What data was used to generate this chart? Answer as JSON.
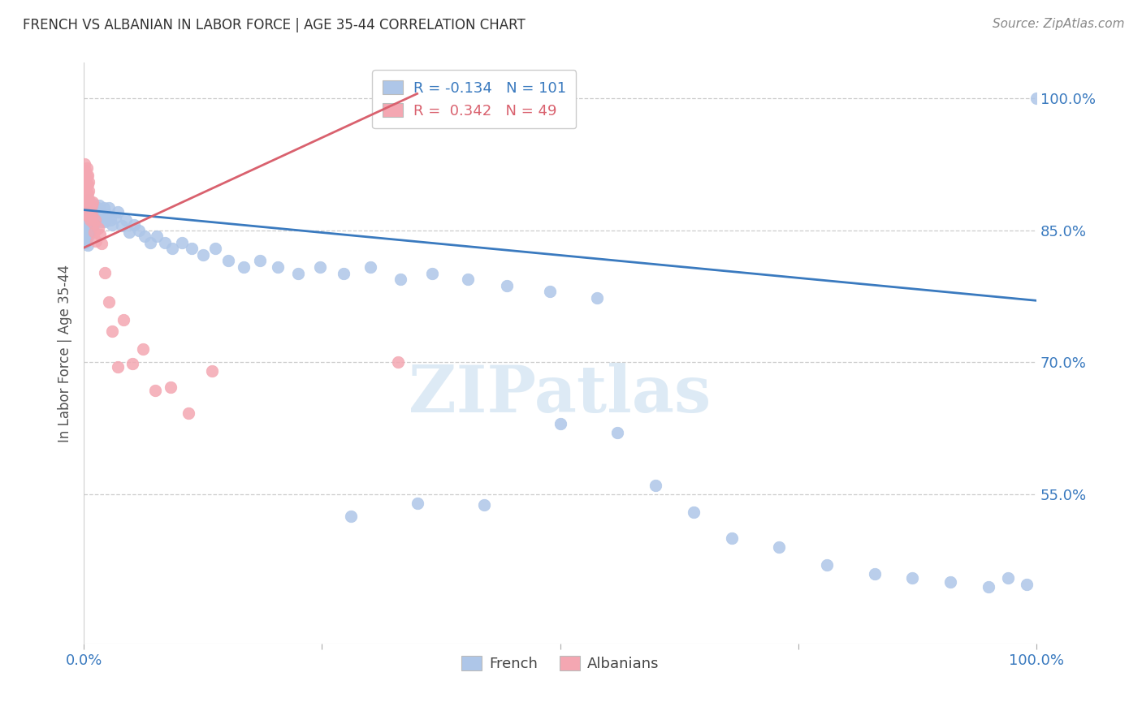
{
  "title": "FRENCH VS ALBANIAN IN LABOR FORCE | AGE 35-44 CORRELATION CHART",
  "source": "Source: ZipAtlas.com",
  "ylabel": "In Labor Force | Age 35-44",
  "xlim": [
    0.0,
    1.0
  ],
  "ylim": [
    0.38,
    1.04
  ],
  "y_ticks_right": [
    1.0,
    0.85,
    0.7,
    0.55
  ],
  "y_tick_labels_right": [
    "100.0%",
    "85.0%",
    "70.0%",
    "55.0%"
  ],
  "grid_color": "#cccccc",
  "background_color": "#ffffff",
  "french_color": "#aec6e8",
  "albanian_color": "#f4a7b2",
  "french_line_color": "#3a7abf",
  "albanian_line_color": "#d9616e",
  "french_R": -0.134,
  "french_N": 101,
  "albanian_R": 0.342,
  "albanian_N": 49,
  "watermark": "ZIPatlas",
  "legend_french_label": "French",
  "legend_albanian_label": "Albanians",
  "french_x": [
    0.001,
    0.001,
    0.001,
    0.002,
    0.002,
    0.002,
    0.002,
    0.002,
    0.003,
    0.003,
    0.003,
    0.003,
    0.003,
    0.004,
    0.004,
    0.004,
    0.004,
    0.004,
    0.005,
    0.005,
    0.005,
    0.005,
    0.006,
    0.006,
    0.006,
    0.007,
    0.007,
    0.007,
    0.008,
    0.008,
    0.009,
    0.009,
    0.009,
    0.01,
    0.01,
    0.011,
    0.011,
    0.012,
    0.012,
    0.013,
    0.014,
    0.014,
    0.015,
    0.016,
    0.017,
    0.018,
    0.019,
    0.02,
    0.021,
    0.022,
    0.024,
    0.026,
    0.028,
    0.03,
    0.033,
    0.036,
    0.04,
    0.044,
    0.048,
    0.053,
    0.058,
    0.064,
    0.07,
    0.077,
    0.085,
    0.093,
    0.103,
    0.113,
    0.125,
    0.138,
    0.152,
    0.168,
    0.185,
    0.204,
    0.225,
    0.248,
    0.273,
    0.301,
    0.332,
    0.366,
    0.403,
    0.444,
    0.489,
    0.539,
    0.5,
    0.56,
    0.6,
    0.64,
    0.68,
    0.73,
    0.78,
    0.83,
    0.87,
    0.91,
    0.95,
    0.97,
    0.99,
    1.0,
    0.42,
    0.35,
    0.28
  ],
  "french_y": [
    0.868,
    0.855,
    0.84,
    0.872,
    0.86,
    0.848,
    0.836,
    0.88,
    0.865,
    0.852,
    0.84,
    0.875,
    0.863,
    0.87,
    0.858,
    0.845,
    0.833,
    0.88,
    0.868,
    0.856,
    0.844,
    0.885,
    0.873,
    0.86,
    0.848,
    0.875,
    0.863,
    0.85,
    0.878,
    0.865,
    0.88,
    0.868,
    0.855,
    0.875,
    0.862,
    0.87,
    0.857,
    0.873,
    0.86,
    0.868,
    0.875,
    0.862,
    0.87,
    0.878,
    0.865,
    0.872,
    0.86,
    0.868,
    0.875,
    0.86,
    0.868,
    0.875,
    0.862,
    0.856,
    0.864,
    0.871,
    0.855,
    0.862,
    0.848,
    0.856,
    0.85,
    0.843,
    0.836,
    0.843,
    0.836,
    0.829,
    0.836,
    0.829,
    0.822,
    0.829,
    0.815,
    0.808,
    0.815,
    0.808,
    0.801,
    0.808,
    0.801,
    0.808,
    0.794,
    0.801,
    0.794,
    0.787,
    0.78,
    0.773,
    0.63,
    0.62,
    0.56,
    0.53,
    0.5,
    0.49,
    0.47,
    0.46,
    0.455,
    0.45,
    0.445,
    0.455,
    0.448,
    1.0,
    0.538,
    0.54,
    0.525
  ],
  "albanian_x": [
    0.001,
    0.001,
    0.001,
    0.001,
    0.001,
    0.002,
    0.002,
    0.002,
    0.002,
    0.002,
    0.002,
    0.003,
    0.003,
    0.003,
    0.003,
    0.003,
    0.004,
    0.004,
    0.004,
    0.004,
    0.005,
    0.005,
    0.005,
    0.006,
    0.006,
    0.007,
    0.007,
    0.008,
    0.008,
    0.009,
    0.01,
    0.011,
    0.012,
    0.013,
    0.015,
    0.017,
    0.019,
    0.022,
    0.026,
    0.03,
    0.036,
    0.042,
    0.051,
    0.062,
    0.075,
    0.091,
    0.11,
    0.135,
    0.33
  ],
  "albanian_y": [
    0.925,
    0.915,
    0.905,
    0.895,
    0.885,
    0.918,
    0.908,
    0.898,
    0.888,
    0.878,
    0.868,
    0.921,
    0.911,
    0.901,
    0.891,
    0.881,
    0.912,
    0.902,
    0.892,
    0.882,
    0.905,
    0.895,
    0.885,
    0.875,
    0.865,
    0.872,
    0.862,
    0.878,
    0.868,
    0.882,
    0.858,
    0.848,
    0.862,
    0.838,
    0.852,
    0.845,
    0.835,
    0.802,
    0.768,
    0.735,
    0.695,
    0.748,
    0.698,
    0.715,
    0.668,
    0.672,
    0.642,
    0.69,
    0.7
  ]
}
